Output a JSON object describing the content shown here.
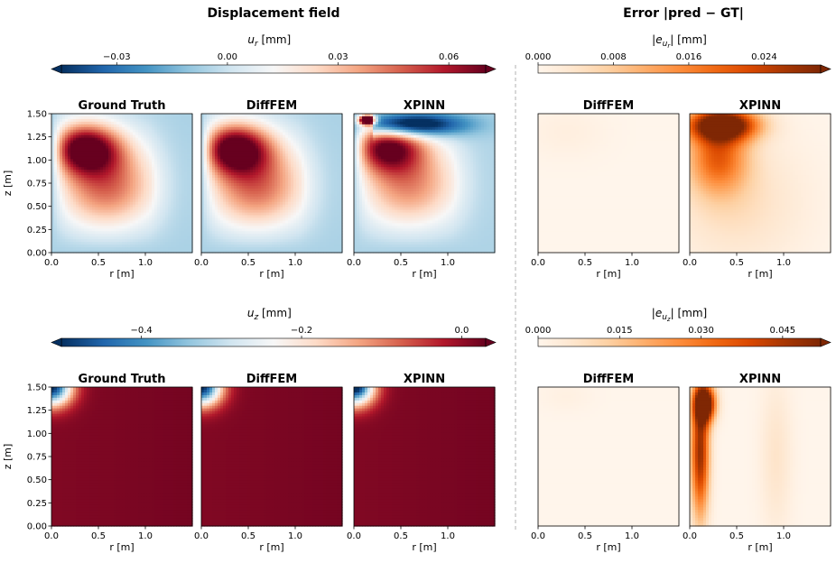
{
  "chart_data": {
    "type": "heatmap",
    "section_titles": {
      "left": "Displacement field",
      "right": "Error  |pred − GT|"
    },
    "panel_titles": [
      "Ground Truth",
      "DiffFEM",
      "XPINN"
    ],
    "error_panel_titles": [
      "DiffFEM",
      "XPINN"
    ],
    "x_axis": {
      "label": "r  [m]",
      "range": [
        0,
        1.5
      ],
      "ticks": [
        "0.0",
        "0.5",
        "1.0"
      ]
    },
    "y_axis": {
      "label": "z  [m]",
      "range": [
        0,
        1.5
      ],
      "ticks": [
        "0.00",
        "0.25",
        "0.50",
        "0.75",
        "1.00",
        "1.25",
        "1.50"
      ]
    },
    "rows": [
      {
        "quantity": "u_r",
        "colorbar_label": "u_r  [mm]",
        "colorbar": {
          "range": [
            -0.045,
            0.07
          ],
          "ticks": [
            -0.03,
            0.0,
            0.03,
            0.06
          ],
          "tick_labels": [
            "−0.03",
            "0.00",
            "0.03",
            "0.06"
          ],
          "colormap": "RdBu_r",
          "extend": "both"
        },
        "error_colorbar_label": "|e_ur|  [mm]",
        "error_colorbar": {
          "range": [
            0,
            0.03
          ],
          "ticks": [
            0.0,
            0.008,
            0.016,
            0.024
          ],
          "tick_labels": [
            "0.000",
            "0.008",
            "0.016",
            "0.024"
          ],
          "colormap": "Oranges",
          "extend": "max"
        }
      },
      {
        "quantity": "u_z",
        "colorbar_label": "u_z  [mm]",
        "colorbar": {
          "range": [
            -0.5,
            0.03
          ],
          "ticks": [
            -0.4,
            -0.2,
            0.0
          ],
          "tick_labels": [
            "−0.4",
            "−0.2",
            "0.0"
          ],
          "colormap": "RdBu_r",
          "extend": "both"
        },
        "error_colorbar_label": "|e_uz|  [mm]",
        "error_colorbar": {
          "range": [
            0,
            0.052
          ],
          "ticks": [
            0.0,
            0.015,
            0.03,
            0.045
          ],
          "tick_labels": [
            "0.000",
            "0.015",
            "0.030",
            "0.045"
          ],
          "colormap": "Oranges",
          "extend": "max"
        }
      }
    ],
    "grid": false
  }
}
